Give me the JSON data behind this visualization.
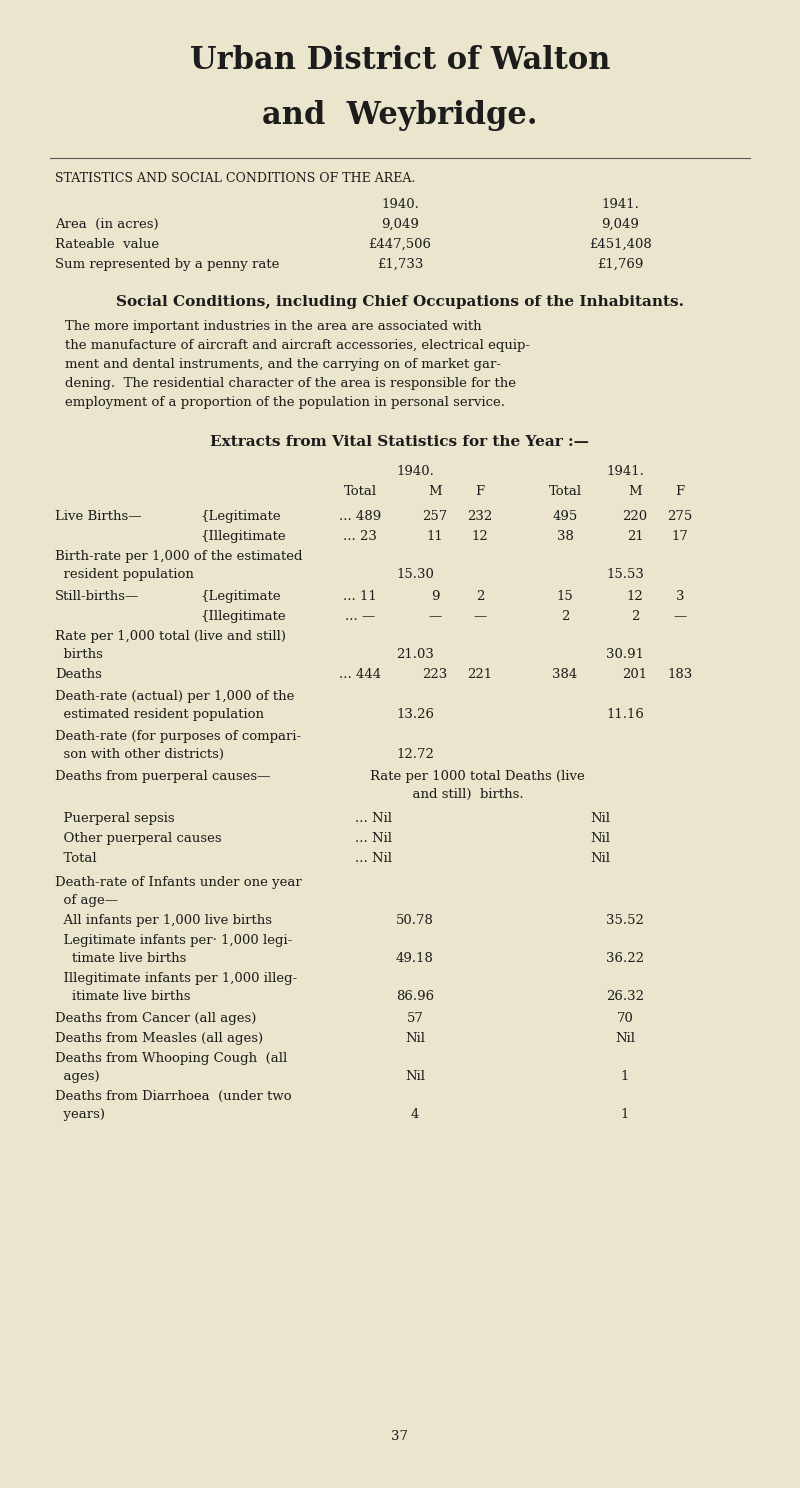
{
  "bg_color": "#eae5cc",
  "title_line1": "Urban District of Walton",
  "title_line2": "and  Weybridge.",
  "section_title": "STATISTICS AND SOCIAL CONDITIONS OF THE AREA.",
  "stats_rows": [
    [
      "Area  (in acres)",
      "9,049",
      "9,049"
    ],
    [
      "Rateable  value",
      "£447,506",
      "£451,408"
    ],
    [
      "Sum represented by a penny rate",
      "£1,733",
      "£1,769"
    ]
  ],
  "social_title": "Social Conditions, including Chief Occupations of the Inhabitants.",
  "social_para_lines": [
    "The more important industries in the area are associated with",
    "the manufacture of aircraft and aircraft accessories, electrical equip-",
    "ment and dental instruments, and the carrying on of market gar-",
    "dening.  The residential character of the area is responsible for the",
    "employment of a proportion of the population in personal service."
  ],
  "vital_title": "Extracts from Vital Statistics for the Year :—",
  "birth_rate_vals": [
    "15.30",
    "15.53"
  ],
  "rate_still_vals": [
    "21.03",
    "30.91"
  ],
  "deaths_vals": [
    "... 444",
    "223",
    "221",
    "384",
    "201",
    "183"
  ],
  "death_rate_actual_vals": [
    "13.26",
    "11.16"
  ],
  "death_rate_comp_val": "12.72",
  "infant_all_vals": [
    "50.78",
    "35.52"
  ],
  "infant_legit_vals": [
    "49.18",
    "36.22"
  ],
  "infant_illeg_vals": [
    "86.96",
    "26.32"
  ],
  "cancer_vals": [
    "57",
    "70"
  ],
  "measles_vals": [
    "Nil",
    "Nil"
  ],
  "whooping_vals": [
    "Nil",
    "1"
  ],
  "diarrhoea_vals": [
    "4",
    "1"
  ],
  "page_num": "37"
}
